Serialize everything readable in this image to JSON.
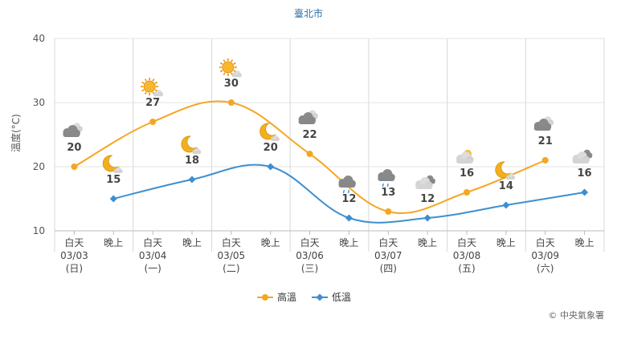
{
  "chart_data": {
    "type": "line",
    "title": "臺北市",
    "ylabel": "溫度(°C)",
    "ylim": [
      10,
      40
    ],
    "yticks": [
      10,
      20,
      30,
      40
    ],
    "grid": true,
    "legend_position": "bottom-center",
    "slots": [
      {
        "period": "白天",
        "date": "03/03",
        "weekday": "(日)",
        "weekday_color": "#c0392b"
      },
      {
        "period": "晚上",
        "date": "",
        "weekday": "",
        "weekday_color": ""
      },
      {
        "period": "白天",
        "date": "03/04",
        "weekday": "(一)",
        "weekday_color": "#444444"
      },
      {
        "period": "晚上",
        "date": "",
        "weekday": "",
        "weekday_color": ""
      },
      {
        "period": "白天",
        "date": "03/05",
        "weekday": "(二)",
        "weekday_color": "#444444"
      },
      {
        "period": "晚上",
        "date": "",
        "weekday": "",
        "weekday_color": ""
      },
      {
        "period": "白天",
        "date": "03/06",
        "weekday": "(三)",
        "weekday_color": "#444444"
      },
      {
        "period": "晚上",
        "date": "",
        "weekday": "",
        "weekday_color": ""
      },
      {
        "period": "白天",
        "date": "03/07",
        "weekday": "(四)",
        "weekday_color": "#444444"
      },
      {
        "period": "晚上",
        "date": "",
        "weekday": "",
        "weekday_color": ""
      },
      {
        "period": "白天",
        "date": "03/08",
        "weekday": "(五)",
        "weekday_color": "#444444"
      },
      {
        "period": "晚上",
        "date": "",
        "weekday": "",
        "weekday_color": ""
      },
      {
        "period": "白天",
        "date": "03/09",
        "weekday": "(六)",
        "weekday_color": "#c0392b"
      },
      {
        "period": "晚上",
        "date": "",
        "weekday": "",
        "weekday_color": ""
      }
    ],
    "series": [
      {
        "name": "高溫",
        "color": "#f5a623",
        "points": [
          {
            "slot": 0,
            "value": 20,
            "icon": "cloudy-icon"
          },
          {
            "slot": 2,
            "value": 27,
            "icon": "sunny-cloud-icon"
          },
          {
            "slot": 4,
            "value": 30,
            "icon": "sunny-cloud-icon"
          },
          {
            "slot": 6,
            "value": 22,
            "icon": "cloudy-icon"
          },
          {
            "slot": 8,
            "value": 13,
            "icon": "rain-cloud-icon"
          },
          {
            "slot": 10,
            "value": 16,
            "icon": "partly-sunny-icon"
          },
          {
            "slot": 12,
            "value": 21,
            "icon": "cloudy-icon"
          }
        ]
      },
      {
        "name": "低溫",
        "color": "#3d8fd1",
        "points": [
          {
            "slot": 1,
            "value": 15,
            "icon": "moon-cloud-icon"
          },
          {
            "slot": 3,
            "value": 18,
            "icon": "moon-cloud-icon"
          },
          {
            "slot": 5,
            "value": 20,
            "icon": "moon-cloud-icon"
          },
          {
            "slot": 7,
            "value": 12,
            "icon": "rain-cloud-icon"
          },
          {
            "slot": 9,
            "value": 12,
            "icon": "cloud-icon"
          },
          {
            "slot": 11,
            "value": 14,
            "icon": "moon-cloud-icon"
          },
          {
            "slot": 13,
            "value": 16,
            "icon": "cloud-icon"
          }
        ]
      }
    ],
    "credit": "© 中央氣象署"
  }
}
